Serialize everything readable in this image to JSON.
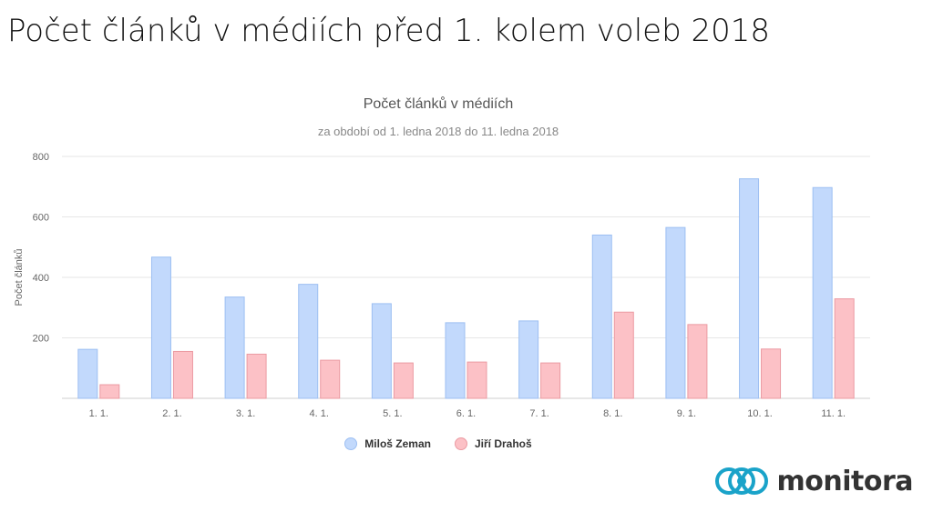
{
  "slide": {
    "title": "Počet článků v médiích před 1. kolem voleb 2018"
  },
  "brand": {
    "name": "monitora",
    "color": "#1aa3c9"
  },
  "chart_data": {
    "type": "bar",
    "title": "Počet článků v médiích",
    "subtitle": "za období od 1. ledna 2018 do 11. ledna 2018",
    "ylabel": "Počet článků",
    "xlabel": "",
    "ylim": [
      0,
      800
    ],
    "yticks": [
      200,
      400,
      600,
      800
    ],
    "grid": true,
    "legend_position": "bottom",
    "categories": [
      "1. 1.",
      "2. 1.",
      "3. 1.",
      "4. 1.",
      "5. 1.",
      "6. 1.",
      "7. 1.",
      "8. 1.",
      "9. 1.",
      "10. 1.",
      "11. 1."
    ],
    "series": [
      {
        "name": "Miloš Zeman",
        "color": "#c2d9fc",
        "stroke": "#9dbff2",
        "values": [
          162,
          467,
          335,
          377,
          313,
          250,
          256,
          540,
          565,
          726,
          697
        ]
      },
      {
        "name": "Jiří Drahoš",
        "color": "#fcc1c6",
        "stroke": "#eb9aa2",
        "values": [
          45,
          155,
          146,
          126,
          117,
          120,
          117,
          285,
          244,
          163,
          329
        ]
      }
    ]
  }
}
